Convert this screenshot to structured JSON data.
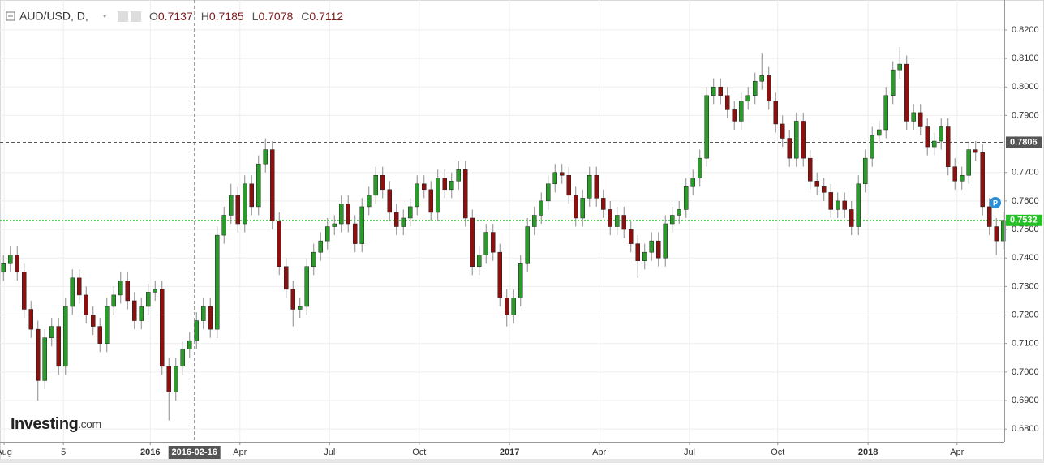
{
  "chart_data": {
    "type": "candlestick",
    "header": {
      "symbol": "AUD/USD, D,",
      "fields": [
        {
          "label": "O",
          "value": 0.7137
        },
        {
          "label": "H",
          "value": 0.7185
        },
        {
          "label": "L",
          "value": 0.7078
        },
        {
          "label": "C",
          "value": 0.7112
        }
      ]
    },
    "watermark": {
      "brand": "Investing",
      "suffix": ".com"
    },
    "up_color": "#2a9a2a",
    "down_color": "#8b1010",
    "ylim": [
      0.6755,
      0.8305
    ],
    "xlim": [
      -0.5,
      145.15
    ],
    "yticks": [
      {
        "value": 0.68,
        "label": "0.6800"
      },
      {
        "value": 0.69,
        "label": "0.6900"
      },
      {
        "value": 0.7,
        "label": "0.7000"
      },
      {
        "value": 0.71,
        "label": "0.7100"
      },
      {
        "value": 0.72,
        "label": "0.7200"
      },
      {
        "value": 0.73,
        "label": "0.7300"
      },
      {
        "value": 0.74,
        "label": "0.7400"
      },
      {
        "value": 0.75,
        "label": "0.7500"
      },
      {
        "value": 0.76,
        "label": "0.7600"
      },
      {
        "value": 0.77,
        "label": "0.7700"
      },
      {
        "value": 0.78,
        "label": "0.7800"
      },
      {
        "value": 0.79,
        "label": "0.7900"
      },
      {
        "value": 0.8,
        "label": "0.8000"
      },
      {
        "value": 0.81,
        "label": "0.8100"
      },
      {
        "value": 0.82,
        "label": "0.8200"
      }
    ],
    "xticks": [
      {
        "value": 0.1,
        "label": "Aug"
      },
      {
        "value": 8.7,
        "label": "5"
      },
      {
        "value": 21.3,
        "label": "2016",
        "bold": true
      },
      {
        "value": 34.3,
        "label": "Apr"
      },
      {
        "value": 47.3,
        "label": "Jul"
      },
      {
        "value": 60.3,
        "label": "Oct"
      },
      {
        "value": 73.4,
        "label": "2017",
        "bold": true
      },
      {
        "value": 86.4,
        "label": "Apr"
      },
      {
        "value": 99.5,
        "label": "Jul"
      },
      {
        "value": 112.3,
        "label": "Oct"
      },
      {
        "value": 125.4,
        "label": "2018",
        "bold": true
      },
      {
        "value": 138.3,
        "label": "Apr"
      }
    ],
    "crosshair": {
      "x": 27.7,
      "label": "2016-02-16"
    },
    "price_lines": [
      {
        "value": 0.7806,
        "color": "#555555",
        "dash": "4,3"
      },
      {
        "value": 0.7532,
        "color": "#22c322",
        "dash": "2,2"
      }
    ],
    "grid": true,
    "x": [
      0,
      1,
      2,
      3,
      4,
      5,
      6,
      7,
      8,
      9,
      10,
      11,
      12,
      13,
      14,
      15,
      16,
      17,
      18,
      19,
      20,
      21,
      22,
      23,
      24,
      25,
      26,
      27,
      28,
      29,
      30,
      31,
      32,
      33,
      34,
      35,
      36,
      37,
      38,
      39,
      40,
      41,
      42,
      43,
      44,
      45,
      46,
      47,
      48,
      49,
      50,
      51,
      52,
      53,
      54,
      55,
      56,
      57,
      58,
      59,
      60,
      61,
      62,
      63,
      64,
      65,
      66,
      67,
      68,
      69,
      70,
      71,
      72,
      73,
      74,
      75,
      76,
      77,
      78,
      79,
      80,
      81,
      82,
      83,
      84,
      85,
      86,
      87,
      88,
      89,
      90,
      91,
      92,
      93,
      94,
      95,
      96,
      97,
      98,
      99,
      100,
      101,
      102,
      103,
      104,
      105,
      106,
      107,
      108,
      109,
      110,
      111,
      112,
      113,
      114,
      115,
      116,
      117,
      118,
      119,
      120,
      121,
      122,
      123,
      124,
      125,
      126,
      127,
      128,
      129,
      130,
      131,
      132,
      133,
      134,
      135,
      136,
      137,
      138,
      139,
      140,
      141,
      142,
      143,
      144,
      145
    ],
    "ohlc": [
      [
        0.735,
        0.741,
        0.732,
        0.738
      ],
      [
        0.738,
        0.744,
        0.735,
        0.741
      ],
      [
        0.741,
        0.744,
        0.732,
        0.735
      ],
      [
        0.735,
        0.738,
        0.719,
        0.722
      ],
      [
        0.722,
        0.725,
        0.712,
        0.715
      ],
      [
        0.715,
        0.718,
        0.69,
        0.697
      ],
      [
        0.697,
        0.715,
        0.694,
        0.712
      ],
      [
        0.712,
        0.719,
        0.709,
        0.716
      ],
      [
        0.716,
        0.719,
        0.699,
        0.702
      ],
      [
        0.702,
        0.726,
        0.699,
        0.723
      ],
      [
        0.723,
        0.736,
        0.72,
        0.733
      ],
      [
        0.733,
        0.736,
        0.724,
        0.727
      ],
      [
        0.727,
        0.73,
        0.717,
        0.72
      ],
      [
        0.72,
        0.723,
        0.713,
        0.716
      ],
      [
        0.716,
        0.719,
        0.707,
        0.71
      ],
      [
        0.71,
        0.726,
        0.707,
        0.723
      ],
      [
        0.723,
        0.73,
        0.72,
        0.727
      ],
      [
        0.727,
        0.735,
        0.724,
        0.732
      ],
      [
        0.732,
        0.735,
        0.722,
        0.725
      ],
      [
        0.725,
        0.728,
        0.715,
        0.718
      ],
      [
        0.718,
        0.726,
        0.715,
        0.723
      ],
      [
        0.723,
        0.731,
        0.72,
        0.728
      ],
      [
        0.728,
        0.732,
        0.725,
        0.729
      ],
      [
        0.729,
        0.732,
        0.699,
        0.702
      ],
      [
        0.702,
        0.705,
        0.683,
        0.693
      ],
      [
        0.693,
        0.705,
        0.69,
        0.702
      ],
      [
        0.702,
        0.711,
        0.699,
        0.708
      ],
      [
        0.708,
        0.714,
        0.705,
        0.711
      ],
      [
        0.711,
        0.721,
        0.708,
        0.718
      ],
      [
        0.718,
        0.726,
        0.715,
        0.723
      ],
      [
        0.723,
        0.726,
        0.712,
        0.715
      ],
      [
        0.715,
        0.751,
        0.712,
        0.748
      ],
      [
        0.748,
        0.758,
        0.745,
        0.755
      ],
      [
        0.755,
        0.766,
        0.752,
        0.762
      ],
      [
        0.762,
        0.765,
        0.749,
        0.752
      ],
      [
        0.752,
        0.769,
        0.749,
        0.766
      ],
      [
        0.766,
        0.769,
        0.755,
        0.758
      ],
      [
        0.758,
        0.776,
        0.755,
        0.773
      ],
      [
        0.773,
        0.782,
        0.77,
        0.778
      ],
      [
        0.778,
        0.781,
        0.75,
        0.753
      ],
      [
        0.753,
        0.756,
        0.734,
        0.737
      ],
      [
        0.737,
        0.74,
        0.726,
        0.729
      ],
      [
        0.729,
        0.732,
        0.716,
        0.722
      ],
      [
        0.722,
        0.726,
        0.719,
        0.723
      ],
      [
        0.723,
        0.74,
        0.72,
        0.737
      ],
      [
        0.737,
        0.745,
        0.734,
        0.742
      ],
      [
        0.742,
        0.749,
        0.739,
        0.746
      ],
      [
        0.746,
        0.754,
        0.743,
        0.751
      ],
      [
        0.751,
        0.755,
        0.748,
        0.752
      ],
      [
        0.752,
        0.762,
        0.749,
        0.759
      ],
      [
        0.759,
        0.762,
        0.749,
        0.752
      ],
      [
        0.752,
        0.755,
        0.742,
        0.745
      ],
      [
        0.745,
        0.761,
        0.742,
        0.758
      ],
      [
        0.758,
        0.765,
        0.755,
        0.762
      ],
      [
        0.762,
        0.772,
        0.759,
        0.769
      ],
      [
        0.769,
        0.772,
        0.761,
        0.764
      ],
      [
        0.764,
        0.767,
        0.753,
        0.756
      ],
      [
        0.756,
        0.759,
        0.748,
        0.751
      ],
      [
        0.751,
        0.757,
        0.748,
        0.754
      ],
      [
        0.754,
        0.761,
        0.751,
        0.758
      ],
      [
        0.758,
        0.769,
        0.755,
        0.766
      ],
      [
        0.766,
        0.769,
        0.761,
        0.764
      ],
      [
        0.764,
        0.767,
        0.753,
        0.756
      ],
      [
        0.756,
        0.771,
        0.753,
        0.768
      ],
      [
        0.768,
        0.771,
        0.761,
        0.764
      ],
      [
        0.764,
        0.77,
        0.761,
        0.767
      ],
      [
        0.767,
        0.774,
        0.764,
        0.771
      ],
      [
        0.771,
        0.774,
        0.751,
        0.754
      ],
      [
        0.754,
        0.757,
        0.734,
        0.737
      ],
      [
        0.737,
        0.744,
        0.734,
        0.741
      ],
      [
        0.741,
        0.752,
        0.738,
        0.749
      ],
      [
        0.749,
        0.752,
        0.739,
        0.742
      ],
      [
        0.742,
        0.745,
        0.723,
        0.726
      ],
      [
        0.726,
        0.729,
        0.716,
        0.72
      ],
      [
        0.72,
        0.729,
        0.717,
        0.726
      ],
      [
        0.726,
        0.741,
        0.723,
        0.738
      ],
      [
        0.738,
        0.754,
        0.735,
        0.751
      ],
      [
        0.751,
        0.758,
        0.748,
        0.755
      ],
      [
        0.755,
        0.763,
        0.752,
        0.76
      ],
      [
        0.76,
        0.769,
        0.757,
        0.766
      ],
      [
        0.766,
        0.773,
        0.763,
        0.77
      ],
      [
        0.77,
        0.773,
        0.766,
        0.769
      ],
      [
        0.769,
        0.772,
        0.759,
        0.762
      ],
      [
        0.762,
        0.765,
        0.751,
        0.754
      ],
      [
        0.754,
        0.764,
        0.751,
        0.761
      ],
      [
        0.761,
        0.772,
        0.758,
        0.769
      ],
      [
        0.769,
        0.772,
        0.758,
        0.761
      ],
      [
        0.761,
        0.764,
        0.754,
        0.757
      ],
      [
        0.757,
        0.76,
        0.748,
        0.751
      ],
      [
        0.751,
        0.758,
        0.748,
        0.755
      ],
      [
        0.755,
        0.758,
        0.747,
        0.75
      ],
      [
        0.75,
        0.753,
        0.742,
        0.745
      ],
      [
        0.745,
        0.748,
        0.733,
        0.739
      ],
      [
        0.739,
        0.745,
        0.736,
        0.742
      ],
      [
        0.742,
        0.749,
        0.739,
        0.746
      ],
      [
        0.746,
        0.749,
        0.737,
        0.74
      ],
      [
        0.74,
        0.755,
        0.737,
        0.752
      ],
      [
        0.752,
        0.758,
        0.749,
        0.755
      ],
      [
        0.755,
        0.76,
        0.752,
        0.757
      ],
      [
        0.757,
        0.768,
        0.754,
        0.765
      ],
      [
        0.765,
        0.771,
        0.762,
        0.768
      ],
      [
        0.768,
        0.778,
        0.765,
        0.775
      ],
      [
        0.775,
        0.8,
        0.772,
        0.797
      ],
      [
        0.797,
        0.803,
        0.794,
        0.8
      ],
      [
        0.8,
        0.803,
        0.794,
        0.797
      ],
      [
        0.797,
        0.8,
        0.789,
        0.792
      ],
      [
        0.792,
        0.795,
        0.785,
        0.788
      ],
      [
        0.788,
        0.798,
        0.785,
        0.795
      ],
      [
        0.795,
        0.8,
        0.792,
        0.797
      ],
      [
        0.797,
        0.805,
        0.794,
        0.802
      ],
      [
        0.802,
        0.812,
        0.799,
        0.804
      ],
      [
        0.804,
        0.807,
        0.792,
        0.795
      ],
      [
        0.795,
        0.798,
        0.784,
        0.787
      ],
      [
        0.787,
        0.79,
        0.779,
        0.782
      ],
      [
        0.782,
        0.785,
        0.772,
        0.775
      ],
      [
        0.775,
        0.791,
        0.772,
        0.788
      ],
      [
        0.788,
        0.791,
        0.772,
        0.775
      ],
      [
        0.775,
        0.778,
        0.764,
        0.767
      ],
      [
        0.767,
        0.77,
        0.762,
        0.765
      ],
      [
        0.765,
        0.768,
        0.76,
        0.763
      ],
      [
        0.763,
        0.766,
        0.754,
        0.757
      ],
      [
        0.757,
        0.763,
        0.754,
        0.76
      ],
      [
        0.76,
        0.763,
        0.754,
        0.757
      ],
      [
        0.757,
        0.76,
        0.748,
        0.751
      ],
      [
        0.751,
        0.769,
        0.748,
        0.766
      ],
      [
        0.766,
        0.778,
        0.763,
        0.775
      ],
      [
        0.775,
        0.786,
        0.772,
        0.783
      ],
      [
        0.783,
        0.788,
        0.78,
        0.785
      ],
      [
        0.785,
        0.8,
        0.782,
        0.797
      ],
      [
        0.797,
        0.809,
        0.794,
        0.806
      ],
      [
        0.806,
        0.814,
        0.803,
        0.808
      ],
      [
        0.808,
        0.811,
        0.785,
        0.788
      ],
      [
        0.788,
        0.794,
        0.785,
        0.791
      ],
      [
        0.791,
        0.794,
        0.783,
        0.786
      ],
      [
        0.786,
        0.789,
        0.776,
        0.779
      ],
      [
        0.779,
        0.784,
        0.776,
        0.781
      ],
      [
        0.781,
        0.789,
        0.778,
        0.786
      ],
      [
        0.786,
        0.789,
        0.769,
        0.772
      ],
      [
        0.772,
        0.775,
        0.764,
        0.767
      ],
      [
        0.767,
        0.772,
        0.764,
        0.769
      ],
      [
        0.769,
        0.781,
        0.766,
        0.778
      ],
      [
        0.778,
        0.781,
        0.774,
        0.777
      ],
      [
        0.777,
        0.78,
        0.755,
        0.758
      ],
      [
        0.758,
        0.761,
        0.748,
        0.751
      ],
      [
        0.751,
        0.754,
        0.741,
        0.746
      ],
      [
        0.746,
        0.7562,
        0.743,
        0.7532
      ]
    ]
  }
}
